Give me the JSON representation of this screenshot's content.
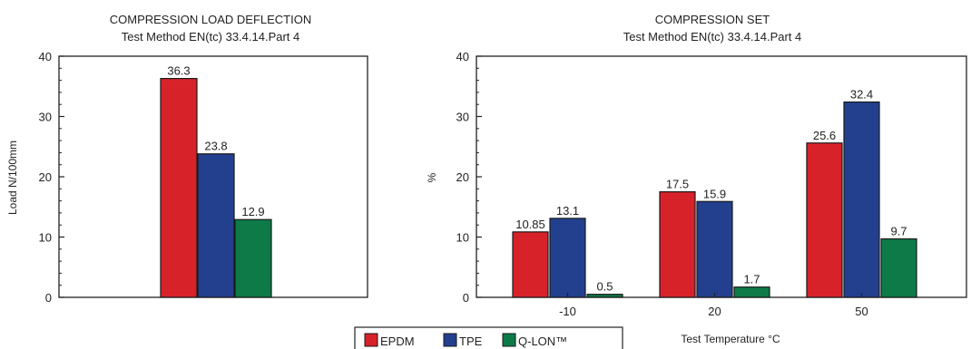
{
  "chart_data": [
    {
      "type": "bar",
      "title": "COMPRESSION LOAD DEFLECTION",
      "subtitle": "Test Method EN(tc) 33.4.14.Part 4",
      "xlabel": "",
      "ylabel": "Load N/100mm",
      "ylim": [
        0,
        40
      ],
      "yticks": [
        0,
        10,
        20,
        30,
        40
      ],
      "grid": false,
      "categories": [
        ""
      ],
      "series": [
        {
          "name": "EPDM",
          "values": [
            36.3
          ],
          "labels": [
            "36.3"
          ]
        },
        {
          "name": "TPE",
          "values": [
            23.8
          ],
          "labels": [
            "23.8"
          ]
        },
        {
          "name": "Q-LON™",
          "values": [
            12.9
          ],
          "labels": [
            "12.9"
          ]
        }
      ]
    },
    {
      "type": "bar",
      "title": "COMPRESSION SET",
      "subtitle": "Test Method EN(tc) 33.4.14.Part 4",
      "xlabel": "Test Temperature °C",
      "ylabel": "%",
      "ylim": [
        0,
        40
      ],
      "yticks": [
        0,
        10,
        20,
        30,
        40
      ],
      "grid": false,
      "categories": [
        "-10",
        "20",
        "50"
      ],
      "series": [
        {
          "name": "EPDM",
          "values": [
            10.85,
            17.5,
            25.6
          ],
          "labels": [
            "10.85",
            "17.5",
            "25.6"
          ]
        },
        {
          "name": "TPE",
          "values": [
            13.1,
            15.9,
            32.4
          ],
          "labels": [
            "13.1",
            "15.9",
            "32.4"
          ]
        },
        {
          "name": "Q-LON™",
          "values": [
            0.5,
            1.7,
            9.7
          ],
          "labels": [
            "0.5",
            "1.7",
            "9.7"
          ]
        }
      ]
    }
  ],
  "legend": {
    "placement": "bottom-center",
    "items": [
      {
        "name": "EPDM",
        "color": "#d8222a"
      },
      {
        "name": "TPE",
        "color": "#23408f"
      },
      {
        "name": "Q-LON™",
        "color": "#0d7a48"
      }
    ]
  }
}
